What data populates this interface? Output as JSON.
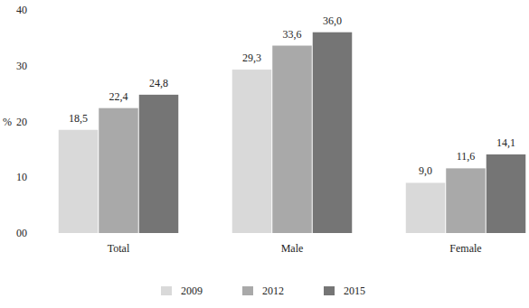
{
  "chart_data": {
    "type": "bar",
    "ylabel": "%",
    "categories": [
      "Total",
      "Male",
      "Female"
    ],
    "series": [
      {
        "name": "2009",
        "color": "#d9d9d9",
        "values": [
          18.5,
          29.3,
          9.0
        ],
        "value_labels": [
          "18,5",
          "29,3",
          "9,0"
        ]
      },
      {
        "name": "2012",
        "color": "#a9a9a9",
        "values": [
          22.4,
          33.6,
          11.6
        ],
        "value_labels": [
          "22,4",
          "33,6",
          "11,6"
        ]
      },
      {
        "name": "2015",
        "color": "#757575",
        "values": [
          24.8,
          36.0,
          14.1
        ],
        "value_labels": [
          "24,8",
          "36,0",
          "14,1"
        ]
      }
    ],
    "ylim": [
      0,
      40
    ],
    "yticks": [
      {
        "value": 0,
        "label": "00"
      },
      10,
      20,
      30,
      40
    ],
    "grid": false,
    "data_labels": true,
    "legend": "bottom"
  }
}
